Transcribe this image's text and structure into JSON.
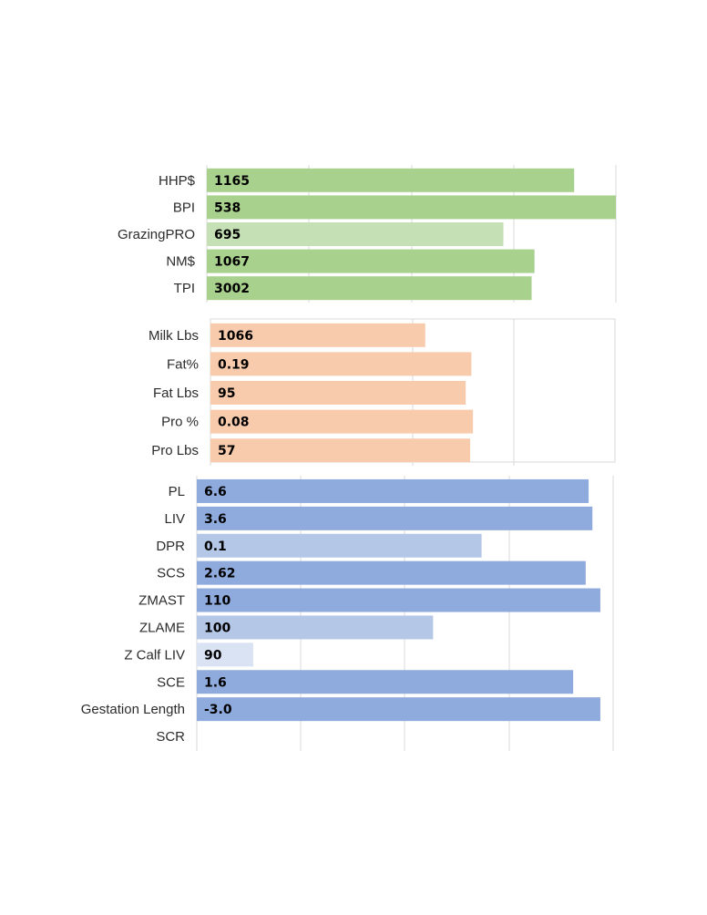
{
  "chart_data": [
    {
      "type": "bar",
      "orientation": "horizontal",
      "title": "",
      "xlabel": "",
      "ylabel": "",
      "grid": true,
      "categories": [
        "HHP$",
        "BPI",
        "GrazingPRO",
        "NM$",
        "TPI"
      ],
      "values": [
        1165,
        538,
        695,
        1067,
        3002
      ],
      "bar_length_fraction": [
        0.898,
        1.0,
        0.725,
        0.801,
        0.794
      ],
      "bar_colors": [
        "#a9d18e",
        "#a9d18e",
        "#c5e0b4",
        "#a9d18e",
        "#a9d18e"
      ]
    },
    {
      "type": "bar",
      "orientation": "horizontal",
      "title": "",
      "xlabel": "",
      "ylabel": "",
      "grid": true,
      "categories": [
        "Milk Lbs",
        "Fat%",
        "Fat Lbs",
        "Pro %",
        "Pro Lbs"
      ],
      "values": [
        1066,
        0.19,
        95,
        0.08,
        57
      ],
      "value_labels": [
        "1066",
        "0.19",
        "95",
        "0.08",
        "57"
      ],
      "bar_length_fraction": [
        0.531,
        0.645,
        0.631,
        0.649,
        0.642
      ],
      "bar_colors": [
        "#f8cbad",
        "#f8cbad",
        "#f8cbad",
        "#f8cbad",
        "#f8cbad"
      ]
    },
    {
      "type": "bar",
      "orientation": "horizontal",
      "title": "",
      "xlabel": "",
      "ylabel": "",
      "grid": true,
      "categories": [
        "PL",
        "LIV",
        "DPR",
        "SCS",
        "ZMAST",
        "ZLAME",
        "Z Calf LIV",
        "SCE",
        "Gestation Length",
        "SCR"
      ],
      "values": [
        6.6,
        3.6,
        0.1,
        2.62,
        110,
        100,
        90,
        1.6,
        -3.0,
        null
      ],
      "value_labels": [
        "6.6",
        "3.6",
        "0.1",
        "2.62",
        "110",
        "100",
        "90",
        "1.6",
        "-3.0",
        ""
      ],
      "bar_length_fraction": [
        0.937,
        0.946,
        0.681,
        0.93,
        0.965,
        0.565,
        0.135,
        0.9,
        0.965,
        0
      ],
      "bar_colors": [
        "#8faadc",
        "#8faadc",
        "#b4c7e7",
        "#8faadc",
        "#8faadc",
        "#b4c7e7",
        "#dae3f3",
        "#8faadc",
        "#8faadc",
        "#8faadc"
      ]
    }
  ]
}
